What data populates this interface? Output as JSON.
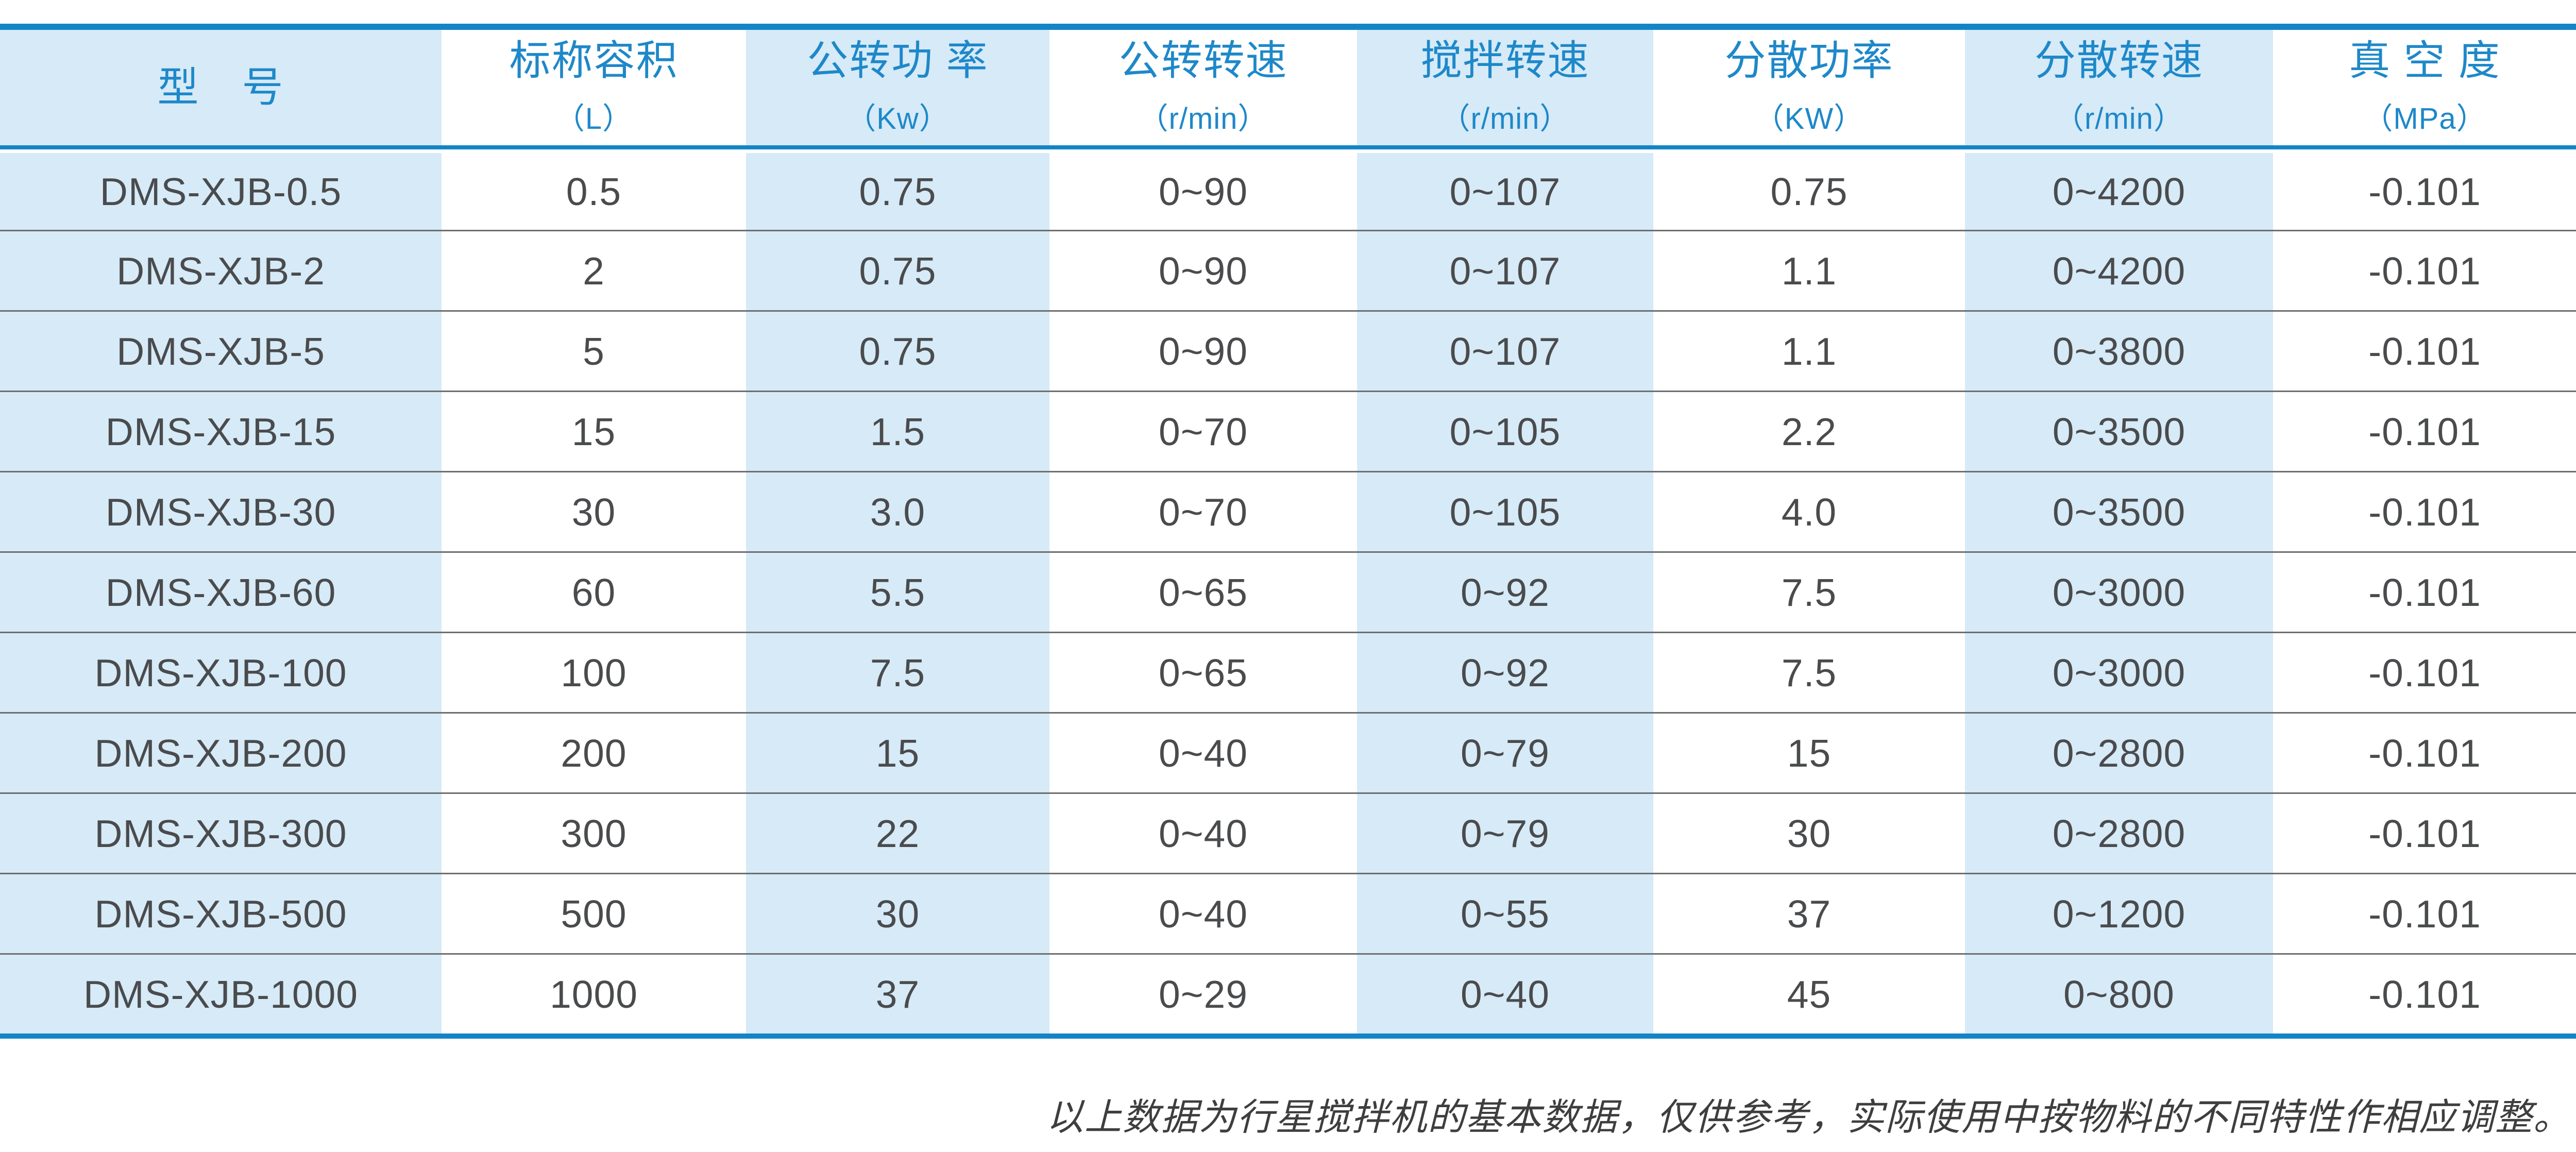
{
  "colors": {
    "accent_blue": "#1385c7",
    "light_blue": "#d6eaf7",
    "header_text": "#1e88c9",
    "body_text": "#4a4b4d",
    "separator": "#6e6e6e",
    "footer_text": "#3e3e3e"
  },
  "table": {
    "columns": [
      {
        "title": "型　号",
        "unit": ""
      },
      {
        "title": "标称容积",
        "unit": "（L）"
      },
      {
        "title": "公转功 率",
        "unit": "（Kw）"
      },
      {
        "title": "公转转速",
        "unit": "（r/min）"
      },
      {
        "title": "搅拌转速",
        "unit": "（r/min）"
      },
      {
        "title": "分散功率",
        "unit": "（KW）"
      },
      {
        "title": "分散转速",
        "unit": "（r/min）"
      },
      {
        "title": "真 空 度",
        "unit": "（MPa）"
      }
    ],
    "rows": [
      [
        "DMS-XJB-0.5",
        "0.5",
        "0.75",
        "0~90",
        "0~107",
        "0.75",
        "0~4200",
        "-0.101"
      ],
      [
        "DMS-XJB-2",
        "2",
        "0.75",
        "0~90",
        "0~107",
        "1.1",
        "0~4200",
        "-0.101"
      ],
      [
        "DMS-XJB-5",
        "5",
        "0.75",
        "0~90",
        "0~107",
        "1.1",
        "0~3800",
        "-0.101"
      ],
      [
        "DMS-XJB-15",
        "15",
        "1.5",
        "0~70",
        "0~105",
        "2.2",
        "0~3500",
        "-0.101"
      ],
      [
        "DMS-XJB-30",
        "30",
        "3.0",
        "0~70",
        "0~105",
        "4.0",
        "0~3500",
        "-0.101"
      ],
      [
        "DMS-XJB-60",
        "60",
        "5.5",
        "0~65",
        "0~92",
        "7.5",
        "0~3000",
        "-0.101"
      ],
      [
        "DMS-XJB-100",
        "100",
        "7.5",
        "0~65",
        "0~92",
        "7.5",
        "0~3000",
        "-0.101"
      ],
      [
        "DMS-XJB-200",
        "200",
        "15",
        "0~40",
        "0~79",
        "15",
        "0~2800",
        "-0.101"
      ],
      [
        "DMS-XJB-300",
        "300",
        "22",
        "0~40",
        "0~79",
        "30",
        "0~2800",
        "-0.101"
      ],
      [
        "DMS-XJB-500",
        "500",
        "30",
        "0~40",
        "0~55",
        "37",
        "0~1200",
        "-0.101"
      ],
      [
        "DMS-XJB-1000",
        "1000",
        "37",
        "0~29",
        "0~40",
        "45",
        "0~800",
        "-0.101"
      ]
    ]
  },
  "footer": {
    "note": "以上数据为行星搅拌机的基本数据，仅供参考，实际使用中按物料的不同特性作相应调整。"
  }
}
